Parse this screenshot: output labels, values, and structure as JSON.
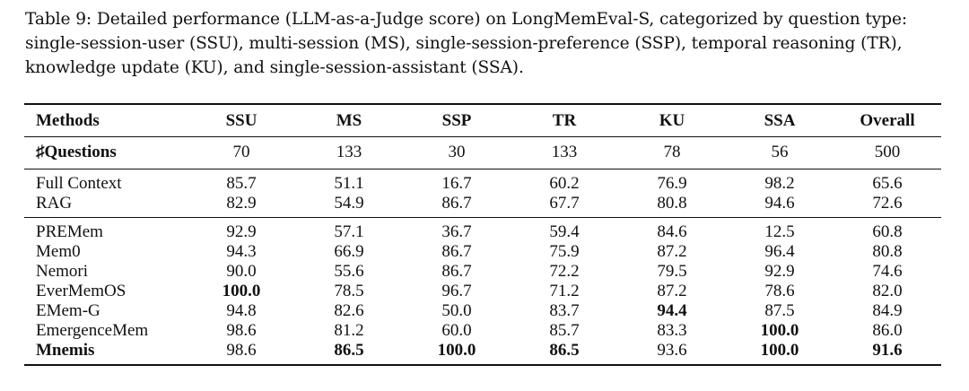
{
  "caption": "Table 9: Detailed performance (LLM-as-a-Judge score) on LongMemEval-S, categorized by question type: single-session-user (SSU), multi-session (MS), single-session-preference (SSP), temporal reasoning (TR), knowledge update (KU), and single-session-assistant (SSA).",
  "table": {
    "headers": [
      "Methods",
      "SSU",
      "MS",
      "SSP",
      "TR",
      "KU",
      "SSA",
      "Overall"
    ],
    "questions_row": {
      "label": "♯Questions",
      "values": [
        "70",
        "133",
        "30",
        "133",
        "78",
        "56",
        "500"
      ]
    },
    "baseline_rows": [
      {
        "method": "Full Context",
        "values": [
          "85.7",
          "51.1",
          "16.7",
          "60.2",
          "76.9",
          "98.2",
          "65.6"
        ]
      },
      {
        "method": "RAG",
        "values": [
          "82.9",
          "54.9",
          "86.7",
          "67.7",
          "80.8",
          "94.6",
          "72.6"
        ]
      }
    ],
    "memory_rows": [
      {
        "method": "PREMem",
        "values": [
          "92.9",
          "57.1",
          "36.7",
          "59.4",
          "84.6",
          "12.5",
          "60.8"
        ]
      },
      {
        "method": "Mem0",
        "values": [
          "94.3",
          "66.9",
          "86.7",
          "75.9",
          "87.2",
          "96.4",
          "80.8"
        ]
      },
      {
        "method": "Nemori",
        "values": [
          "90.0",
          "55.6",
          "86.7",
          "72.2",
          "79.5",
          "92.9",
          "74.6"
        ]
      },
      {
        "method": "EverMemOS",
        "values": [
          "100.0",
          "78.5",
          "96.7",
          "71.2",
          "87.2",
          "78.6",
          "82.0"
        ]
      },
      {
        "method": "EMem-G",
        "values": [
          "94.8",
          "82.6",
          "50.0",
          "83.7",
          "94.4",
          "87.5",
          "84.9"
        ]
      },
      {
        "method": "EmergenceMem",
        "values": [
          "98.6",
          "81.2",
          "60.0",
          "85.7",
          "83.3",
          "100.0",
          "86.0"
        ]
      },
      {
        "method": "Mnemis",
        "values": [
          "98.6",
          "86.5",
          "100.0",
          "86.5",
          "93.6",
          "100.0",
          "91.6"
        ]
      }
    ]
  }
}
